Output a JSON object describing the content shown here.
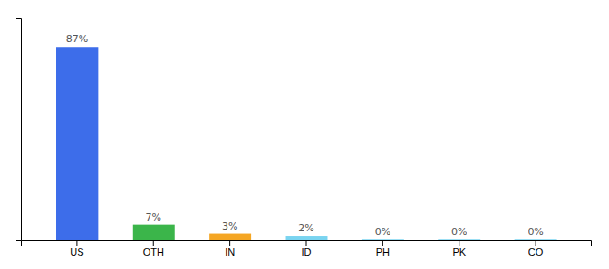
{
  "chart_data": {
    "type": "bar",
    "categories": [
      "US",
      "OTH",
      "IN",
      "ID",
      "PH",
      "PK",
      "CO"
    ],
    "values": [
      87,
      7,
      3,
      2,
      0.3,
      0.3,
      0.3
    ],
    "value_labels": [
      "87%",
      "7%",
      "3%",
      "2%",
      "0%",
      "0%",
      "0%"
    ],
    "data_labels": true,
    "colors": [
      "#3d6dea",
      "#3bb54a",
      "#f5a623",
      "#7ad4f0",
      "#7ad4f0",
      "#7ad4f0",
      "#7ad4f0"
    ],
    "ylim": [
      0,
      100
    ],
    "yticks": [],
    "tick_labels": "x"
  }
}
